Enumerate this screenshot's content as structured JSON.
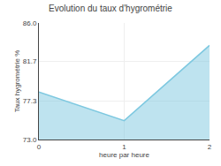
{
  "chart_data": {
    "type": "area",
    "title": "Evolution du taux d'hygrométrie",
    "xlabel": "heure par heure",
    "ylabel": "Taux hygrométrie %",
    "x": [
      0,
      1,
      2
    ],
    "values": [
      78.3,
      75.1,
      83.5
    ],
    "color": "#7dc8e0",
    "xlim": [
      0,
      2
    ],
    "ylim": [
      73.0,
      86.0
    ],
    "xticks": [
      0,
      1,
      2
    ],
    "yticks": [
      {
        "value": 73.0,
        "label": "73.0"
      },
      77.3,
      81.7,
      {
        "value": 86.0,
        "label": "86.0"
      }
    ],
    "grid": true
  }
}
